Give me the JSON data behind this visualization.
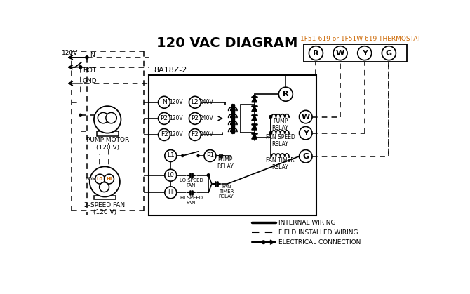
{
  "title": "120 VAC DIAGRAM",
  "title_fontsize": 14,
  "title_fontweight": "bold",
  "thermostat_label": "1F51-619 or 1F51W-619 THERMOSTAT",
  "thermostat_color": "#cc6600",
  "thermostat_terminals": [
    "R",
    "W",
    "Y",
    "G"
  ],
  "control_box_label": "8A18Z-2",
  "left_terminals_120": [
    "N",
    "P2",
    "F2"
  ],
  "left_terminals_240": [
    "L2",
    "P2",
    "F2"
  ],
  "left_voltages_120": [
    "120V",
    "120V",
    "120V"
  ],
  "left_voltages_240": [
    "240V",
    "240V",
    "240V"
  ],
  "right_relay_labels": [
    "PUMP\nRELAY",
    "FAN SPEED\nRELAY",
    "FAN TIMER\nRELAY"
  ],
  "right_relay_terminals": [
    "W",
    "Y",
    "G"
  ],
  "legend_items": [
    "INTERNAL WIRING",
    "FIELD INSTALLED WIRING",
    "ELECTRICAL CONNECTION"
  ],
  "bg_color": "#ffffff",
  "line_color": "#000000",
  "orange_color": "#cc6600",
  "figsize": [
    6.7,
    4.19
  ],
  "dpi": 100
}
